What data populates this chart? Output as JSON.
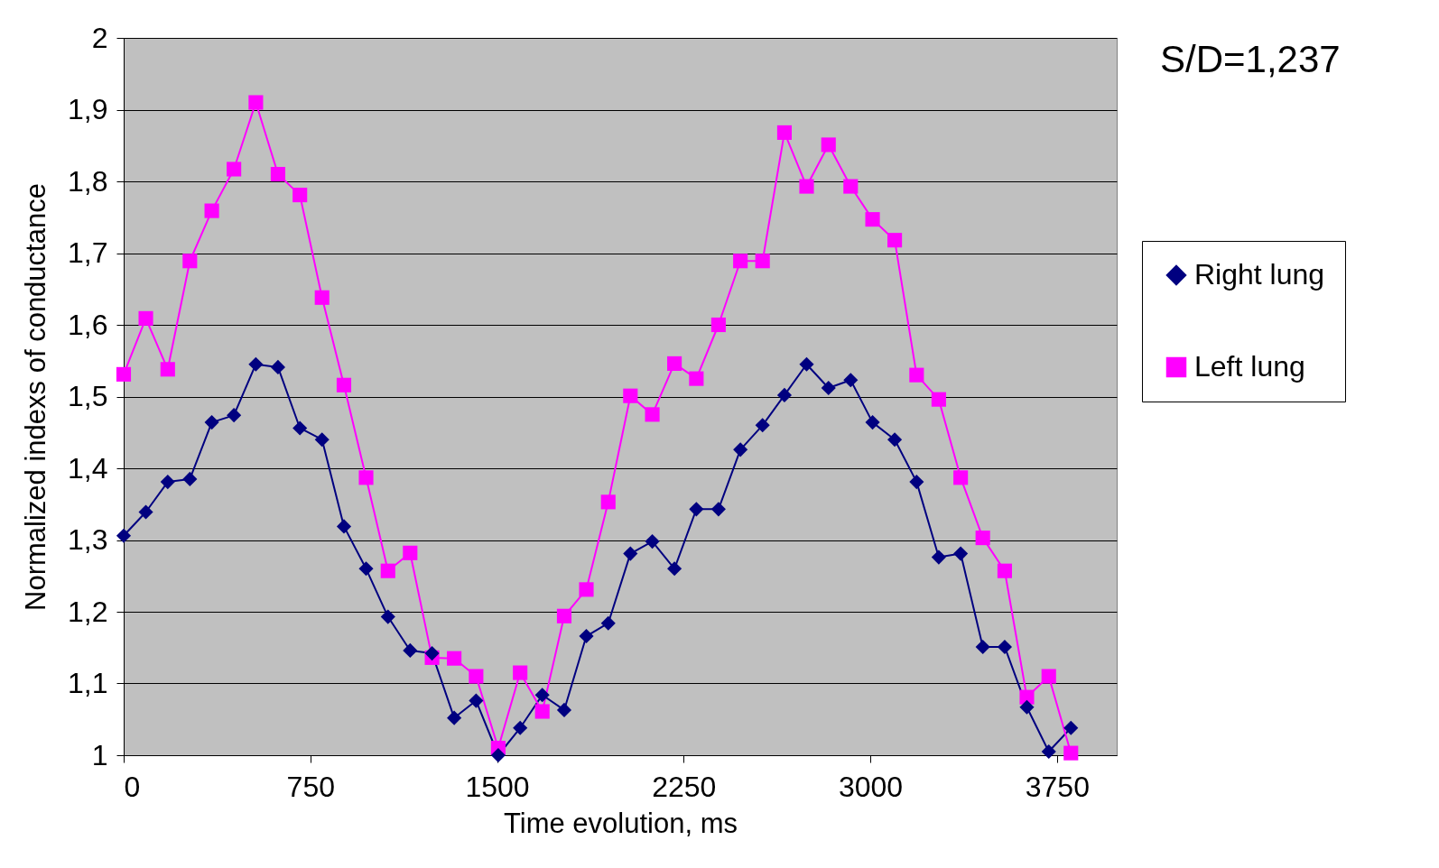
{
  "chart_data": {
    "type": "line",
    "xlabel": "Time evolution, ms",
    "ylabel": "Normalized indexs of conductance",
    "annotations": [
      "S/D=1,237"
    ],
    "x": [
      0,
      89,
      177,
      266,
      354,
      443,
      531,
      620,
      708,
      797,
      885,
      974,
      1062,
      1151,
      1239,
      1328,
      1416,
      1505,
      1593,
      1682,
      1770,
      1859,
      1947,
      2036,
      2124,
      2213,
      2301,
      2390,
      2478,
      2567,
      2655,
      2744,
      2832,
      2921,
      3009,
      3098,
      3186,
      3275,
      3363,
      3452,
      3540,
      3629,
      3717,
      3806
    ],
    "series": [
      {
        "name": "Right lung",
        "color": "#000080",
        "marker": "diamond",
        "values": [
          1.306,
          1.339,
          1.381,
          1.385,
          1.464,
          1.474,
          1.545,
          1.541,
          1.456,
          1.44,
          1.319,
          1.26,
          1.193,
          1.146,
          1.142,
          1.052,
          1.076,
          1.0,
          1.038,
          1.084,
          1.063,
          1.166,
          1.184,
          1.281,
          1.298,
          1.26,
          1.343,
          1.343,
          1.426,
          1.46,
          1.502,
          1.545,
          1.512,
          1.523,
          1.464,
          1.44,
          1.381,
          1.276,
          1.281,
          1.151,
          1.151,
          1.067,
          1.005,
          1.038
        ]
      },
      {
        "name": "Left lung",
        "color": "#ff00ff",
        "marker": "square",
        "values": [
          1.531,
          1.609,
          1.538,
          1.689,
          1.759,
          1.817,
          1.91,
          1.81,
          1.781,
          1.638,
          1.516,
          1.387,
          1.257,
          1.282,
          1.136,
          1.135,
          1.11,
          1.01,
          1.115,
          1.061,
          1.194,
          1.231,
          1.353,
          1.501,
          1.475,
          1.546,
          1.525,
          1.6,
          1.689,
          1.689,
          1.868,
          1.793,
          1.851,
          1.793,
          1.747,
          1.718,
          1.53,
          1.496,
          1.387,
          1.303,
          1.257,
          1.081,
          1.11,
          1.003
        ]
      }
    ],
    "xlim": [
      0,
      3990
    ],
    "xticks": [
      0,
      750,
      1500,
      2250,
      3000,
      3750
    ],
    "ylim": [
      1,
      2
    ],
    "yticks": [
      1,
      {
        "value": 1.1,
        "label": "1,1"
      },
      {
        "value": 1.2,
        "label": "1,2"
      },
      {
        "value": 1.3,
        "label": "1,3"
      },
      {
        "value": 1.4,
        "label": "1,4"
      },
      {
        "value": 1.5,
        "label": "1,5"
      },
      {
        "value": 1.6,
        "label": "1,6"
      },
      {
        "value": 1.7,
        "label": "1,7"
      },
      {
        "value": 1.8,
        "label": "1,8"
      },
      {
        "value": 1.9,
        "label": "1,9"
      },
      2
    ],
    "grid": "y",
    "legend": "right"
  }
}
